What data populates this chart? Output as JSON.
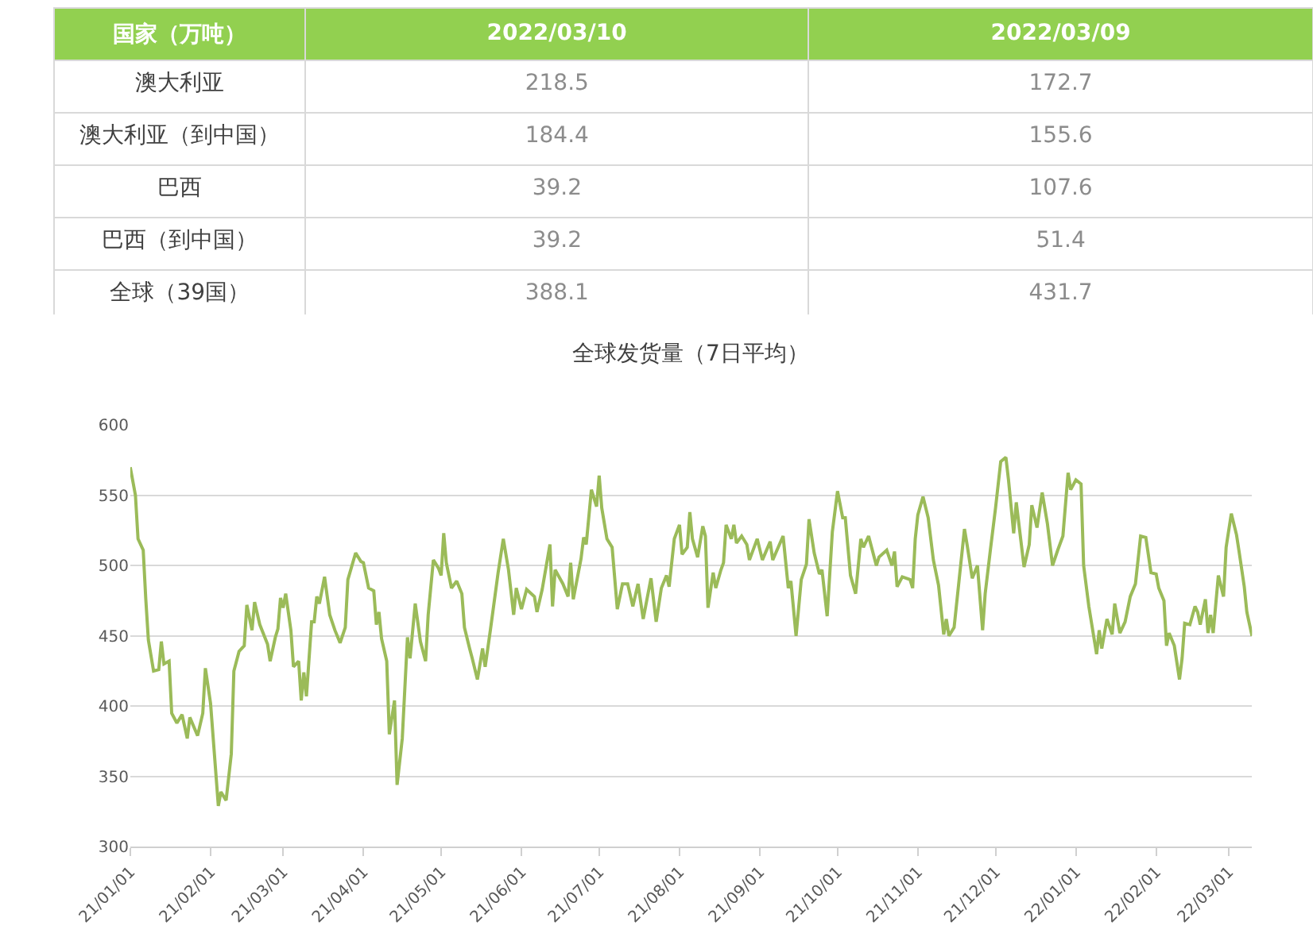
{
  "chart_data": [
    {
      "type": "other",
      "ylabel": "国家（万吨）",
      "data_labels": true,
      "categories": [
        "澳大利亚",
        "澳大利亚（到中国）",
        "巴西",
        "巴西（到中国）",
        "全球（39国）"
      ],
      "series": [
        {
          "name": "2022/03/10",
          "values": [
            218.5,
            184.4,
            39.2,
            39.2,
            388.1
          ]
        },
        {
          "name": "2022/03/09",
          "values": [
            172.7,
            155.6,
            107.6,
            51.4,
            431.7
          ]
        }
      ]
    },
    {
      "type": "line",
      "title": "全球发货量（7日平均）",
      "color": "#9bbb59",
      "grid": "y",
      "marker": "none",
      "line_style": "solid",
      "xlim": [
        "2021-01-01",
        "2022-03-10"
      ],
      "xticks": [
        {
          "value": "2021-01-01",
          "label": "21/01/01"
        },
        {
          "value": "2021-02-01",
          "label": "21/02/01"
        },
        {
          "value": "2021-03-01",
          "label": "21/03/01"
        },
        {
          "value": "2021-04-01",
          "label": "21/04/01"
        },
        {
          "value": "2021-05-01",
          "label": "21/05/01"
        },
        {
          "value": "2021-06-01",
          "label": "21/06/01"
        },
        {
          "value": "2021-07-01",
          "label": "21/07/01"
        },
        {
          "value": "2021-08-01",
          "label": "21/08/01"
        },
        {
          "value": "2021-09-01",
          "label": "21/09/01"
        },
        {
          "value": "2021-10-01",
          "label": "21/10/01"
        },
        {
          "value": "2021-11-01",
          "label": "21/11/01"
        },
        {
          "value": "2021-12-01",
          "label": "21/12/01"
        },
        {
          "value": "2022-01-01",
          "label": "22/01/01"
        },
        {
          "value": "2022-02-01",
          "label": "22/02/01"
        },
        {
          "value": "2022-03-01",
          "label": "22/03/01"
        }
      ],
      "ylim": [
        300,
        600
      ],
      "yticks": [
        300,
        350,
        400,
        450,
        500,
        550,
        600
      ],
      "x": [
        "2021-01-01",
        "2021-01-03",
        "2021-01-04",
        "2021-01-06",
        "2021-01-07",
        "2021-01-08",
        "2021-01-10",
        "2021-01-12",
        "2021-01-13",
        "2021-01-14",
        "2021-01-16",
        "2021-01-17",
        "2021-01-19",
        "2021-01-21",
        "2021-01-23",
        "2021-01-24",
        "2021-01-27",
        "2021-01-29",
        "2021-01-30",
        "2021-02-01",
        "2021-02-04",
        "2021-02-05",
        "2021-02-07",
        "2021-02-09",
        "2021-02-10",
        "2021-02-12",
        "2021-02-14",
        "2021-02-15",
        "2021-02-17",
        "2021-02-18",
        "2021-02-20",
        "2021-02-23",
        "2021-02-24",
        "2021-02-26",
        "2021-02-27",
        "2021-02-28",
        "2021-03-01",
        "2021-03-02",
        "2021-03-04",
        "2021-03-05",
        "2021-03-07",
        "2021-03-08",
        "2021-03-09",
        "2021-03-10",
        "2021-03-12",
        "2021-03-13",
        "2021-03-14",
        "2021-03-15",
        "2021-03-17",
        "2021-03-19",
        "2021-03-21",
        "2021-03-23",
        "2021-03-25",
        "2021-03-26",
        "2021-03-29",
        "2021-03-31",
        "2021-04-01",
        "2021-04-03",
        "2021-04-05",
        "2021-04-06",
        "2021-04-07",
        "2021-04-08",
        "2021-04-10",
        "2021-04-11",
        "2021-04-13",
        "2021-04-14",
        "2021-04-16",
        "2021-04-18",
        "2021-04-19",
        "2021-04-21",
        "2021-04-23",
        "2021-04-25",
        "2021-04-26",
        "2021-04-28",
        "2021-04-30",
        "2021-05-01",
        "2021-05-02",
        "2021-05-03",
        "2021-05-05",
        "2021-05-07",
        "2021-05-09",
        "2021-05-10",
        "2021-05-12",
        "2021-05-13",
        "2021-05-15",
        "2021-05-17",
        "2021-05-18",
        "2021-05-20",
        "2021-05-23",
        "2021-05-25",
        "2021-05-27",
        "2021-05-29",
        "2021-05-30",
        "2021-06-01",
        "2021-06-03",
        "2021-06-06",
        "2021-06-07",
        "2021-06-09",
        "2021-06-12",
        "2021-06-13",
        "2021-06-14",
        "2021-06-17",
        "2021-06-19",
        "2021-06-20",
        "2021-06-21",
        "2021-06-24",
        "2021-06-25",
        "2021-06-26",
        "2021-06-28",
        "2021-06-30",
        "2021-07-01",
        "2021-07-02",
        "2021-07-04",
        "2021-07-06",
        "2021-07-08",
        "2021-07-10",
        "2021-07-12",
        "2021-07-14",
        "2021-07-16",
        "2021-07-18",
        "2021-07-21",
        "2021-07-23",
        "2021-07-25",
        "2021-07-27",
        "2021-07-28",
        "2021-07-30",
        "2021-08-01",
        "2021-08-02",
        "2021-08-04",
        "2021-08-05",
        "2021-08-06",
        "2021-08-08",
        "2021-08-10",
        "2021-08-11",
        "2021-08-12",
        "2021-08-14",
        "2021-08-15",
        "2021-08-17",
        "2021-08-18",
        "2021-08-19",
        "2021-08-21",
        "2021-08-22",
        "2021-08-23",
        "2021-08-25",
        "2021-08-27",
        "2021-08-28",
        "2021-08-31",
        "2021-09-02",
        "2021-09-05",
        "2021-09-06",
        "2021-09-10",
        "2021-09-12",
        "2021-09-13",
        "2021-09-15",
        "2021-09-17",
        "2021-09-19",
        "2021-09-20",
        "2021-09-22",
        "2021-09-24",
        "2021-09-25",
        "2021-09-27",
        "2021-09-29",
        "2021-10-01",
        "2021-10-03",
        "2021-10-04",
        "2021-10-06",
        "2021-10-08",
        "2021-10-10",
        "2021-10-11",
        "2021-10-13",
        "2021-10-16",
        "2021-10-17",
        "2021-10-20",
        "2021-10-22",
        "2021-10-23",
        "2021-10-24",
        "2021-10-26",
        "2021-10-29",
        "2021-10-30",
        "2021-10-31",
        "2021-11-01",
        "2021-11-03",
        "2021-11-05",
        "2021-11-07",
        "2021-11-09",
        "2021-11-11",
        "2021-11-12",
        "2021-11-13",
        "2021-11-15",
        "2021-11-17",
        "2021-11-19",
        "2021-11-20",
        "2021-11-22",
        "2021-11-24",
        "2021-11-26",
        "2021-11-27",
        "2021-11-29",
        "2021-12-01",
        "2021-12-03",
        "2021-12-05",
        "2021-12-06",
        "2021-12-08",
        "2021-12-09",
        "2021-12-12",
        "2021-12-14",
        "2021-12-15",
        "2021-12-17",
        "2021-12-19",
        "2021-12-21",
        "2021-12-23",
        "2021-12-25",
        "2021-12-27",
        "2021-12-29",
        "2021-12-30",
        "2022-01-01",
        "2022-01-03",
        "2022-01-04",
        "2022-01-06",
        "2022-01-09",
        "2022-01-10",
        "2022-01-11",
        "2022-01-13",
        "2022-01-15",
        "2022-01-16",
        "2022-01-18",
        "2022-01-20",
        "2022-01-22",
        "2022-01-24",
        "2022-01-26",
        "2022-01-28",
        "2022-01-30",
        "2022-02-01",
        "2022-02-02",
        "2022-02-04",
        "2022-02-05",
        "2022-02-06",
        "2022-02-08",
        "2022-02-10",
        "2022-02-11",
        "2022-02-12",
        "2022-02-14",
        "2022-02-16",
        "2022-02-17",
        "2022-02-18",
        "2022-02-20",
        "2022-02-21",
        "2022-02-22",
        "2022-02-23",
        "2022-02-25",
        "2022-02-27",
        "2022-02-28",
        "2022-03-02",
        "2022-03-04",
        "2022-03-05",
        "2022-03-07",
        "2022-03-08",
        "2022-03-10"
      ],
      "values": [
        570,
        550,
        519,
        511,
        476,
        447,
        425,
        426,
        446,
        430,
        432,
        395,
        388,
        394,
        377,
        392,
        379,
        395,
        427,
        402,
        329,
        339,
        333,
        366,
        425,
        439,
        443,
        472,
        454,
        474,
        458,
        444,
        432,
        449,
        455,
        477,
        470,
        480,
        454,
        428,
        432,
        404,
        424,
        407,
        460,
        460,
        478,
        473,
        492,
        465,
        454,
        445,
        456,
        490,
        509,
        503,
        502,
        484,
        482,
        458,
        467,
        448,
        432,
        380,
        404,
        344,
        377,
        449,
        434,
        473,
        446,
        432,
        465,
        504,
        498,
        493,
        523,
        502,
        484,
        489,
        480,
        456,
        441,
        434,
        419,
        441,
        428,
        454,
        495,
        519,
        497,
        465,
        484,
        469,
        483,
        478,
        467,
        483,
        515,
        471,
        497,
        487,
        478,
        502,
        476,
        505,
        520,
        515,
        554,
        542,
        564,
        541,
        519,
        513,
        469,
        487,
        487,
        471,
        487,
        462,
        491,
        460,
        484,
        493,
        485,
        519,
        529,
        508,
        513,
        538,
        519,
        506,
        528,
        521,
        470,
        495,
        484,
        497,
        502,
        529,
        519,
        529,
        516,
        521,
        515,
        504,
        519,
        504,
        517,
        504,
        521,
        484,
        489,
        450,
        490,
        501,
        533,
        509,
        494,
        497,
        464,
        524,
        553,
        534,
        534,
        493,
        480,
        519,
        513,
        521,
        500,
        506,
        511,
        500,
        510,
        485,
        492,
        490,
        484,
        519,
        536,
        549,
        534,
        504,
        486,
        451,
        462,
        450,
        456,
        491,
        526,
        515,
        491,
        500,
        454,
        480,
        511,
        541,
        574,
        577,
        561,
        523,
        545,
        499,
        515,
        543,
        527,
        552,
        530,
        500,
        511,
        521,
        566,
        554,
        561,
        558,
        500,
        471,
        437,
        454,
        441,
        462,
        451,
        473,
        452,
        460,
        478,
        487,
        521,
        520,
        495,
        494,
        484,
        475,
        443,
        452,
        443,
        419,
        434,
        459,
        458,
        471,
        467,
        458,
        476,
        452,
        465,
        452,
        493,
        478,
        513,
        537,
        522,
        510,
        485,
        467,
        450
      ]
    }
  ]
}
